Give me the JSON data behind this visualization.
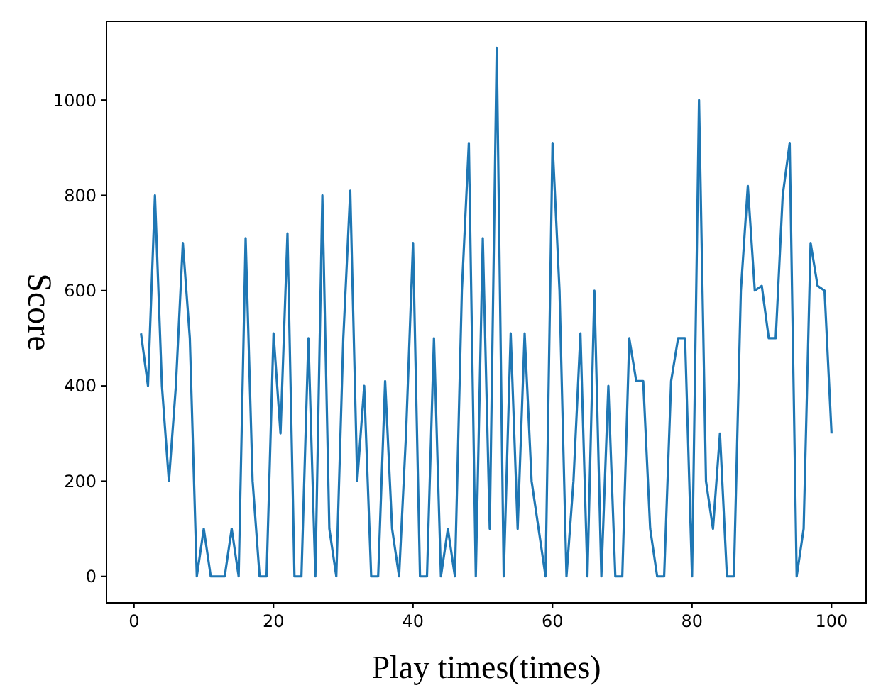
{
  "chart_data": {
    "type": "line",
    "xlabel": "Play times(times)",
    "ylabel": "Score",
    "xlim": [
      -3.95,
      104.95
    ],
    "ylim": [
      -55.5,
      1165.5
    ],
    "xticks": [
      0,
      20,
      40,
      60,
      80,
      100
    ],
    "yticks": [
      0,
      200,
      400,
      600,
      800,
      1000
    ],
    "grid": false,
    "marker": "none",
    "line_style": "solid",
    "x": [
      1,
      2,
      3,
      4,
      5,
      6,
      7,
      8,
      9,
      10,
      11,
      12,
      13,
      14,
      15,
      16,
      17,
      18,
      19,
      20,
      21,
      22,
      23,
      24,
      25,
      26,
      27,
      28,
      29,
      30,
      31,
      32,
      33,
      34,
      35,
      36,
      37,
      38,
      39,
      40,
      41,
      42,
      43,
      44,
      45,
      46,
      47,
      48,
      49,
      50,
      51,
      52,
      53,
      54,
      55,
      56,
      57,
      58,
      59,
      60,
      61,
      62,
      63,
      64,
      65,
      66,
      67,
      68,
      69,
      70,
      71,
      72,
      73,
      74,
      75,
      76,
      77,
      78,
      79,
      80,
      81,
      82,
      83,
      84,
      85,
      86,
      87,
      88,
      89,
      90,
      91,
      92,
      93,
      94,
      95,
      96,
      97,
      98,
      99,
      100
    ],
    "series": [
      {
        "color": "#1f77b4",
        "values": [
          510,
          400,
          800,
          400,
          200,
          400,
          700,
          500,
          0,
          100,
          0,
          0,
          0,
          100,
          0,
          710,
          200,
          0,
          0,
          510,
          300,
          720,
          0,
          0,
          500,
          0,
          800,
          100,
          0,
          500,
          810,
          200,
          400,
          0,
          0,
          410,
          100,
          0,
          300,
          700,
          0,
          0,
          500,
          0,
          100,
          0,
          600,
          910,
          0,
          710,
          100,
          1110,
          0,
          510,
          100,
          510,
          200,
          100,
          0,
          910,
          600,
          0,
          200,
          510,
          0,
          600,
          0,
          400,
          0,
          0,
          500,
          410,
          410,
          100,
          0,
          0,
          410,
          500,
          500,
          0,
          1000,
          200,
          100,
          300,
          0,
          0,
          600,
          820,
          600,
          610,
          500,
          500,
          800,
          910,
          0,
          100,
          700,
          610,
          600,
          300
        ]
      }
    ]
  }
}
